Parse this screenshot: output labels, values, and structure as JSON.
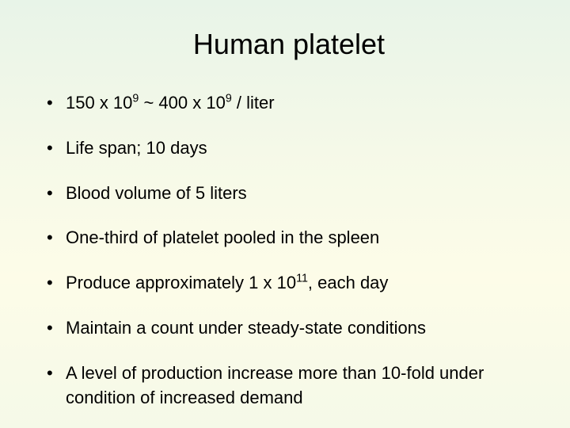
{
  "slide": {
    "title": "Human platelet",
    "bullets": [
      {
        "pre": "150 x 10",
        "sup1": "9",
        "mid": " ~ 400 x 10",
        "sup2": "9",
        "post": " / liter"
      },
      {
        "text": "Life span; 10 days"
      },
      {
        "text": "Blood volume of 5 liters"
      },
      {
        "text": "One-third of platelet pooled in the spleen"
      },
      {
        "pre": "Produce approximately 1 x 10",
        "sup1": "11",
        "post": ", each day"
      },
      {
        "text": "Maintain a count under steady-state conditions"
      },
      {
        "text": "A level of production increase more than 10-fold under condition of increased demand"
      }
    ],
    "colors": {
      "background_top": "#e8f4e8",
      "background_mid": "#fdfce8",
      "text": "#000000"
    },
    "typography": {
      "title_fontsize": 36,
      "bullet_fontsize": 22,
      "font_family": "Arial"
    }
  }
}
